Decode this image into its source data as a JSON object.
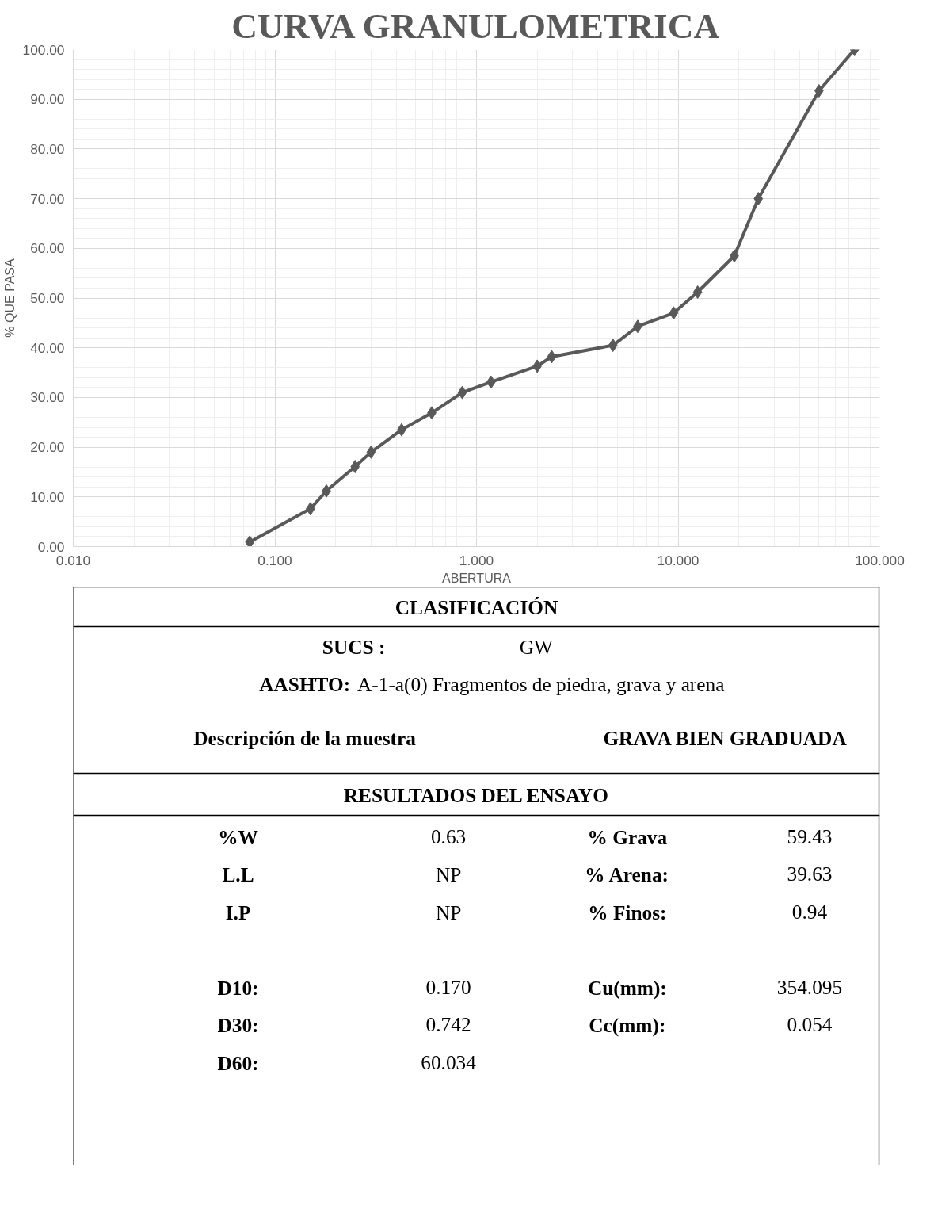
{
  "chart_data": {
    "type": "line",
    "title": "CURVA GRANULOMETRICA",
    "xlabel": "ABERTURA",
    "ylabel": "% QUE PASA",
    "log": "x",
    "x": [
      0.075,
      0.15,
      0.18,
      0.25,
      0.3,
      0.425,
      0.6,
      0.85,
      1.18,
      2.0,
      2.36,
      4.75,
      6.3,
      9.5,
      12.5,
      19.0,
      25.0,
      50.0,
      75.0
    ],
    "series": [
      {
        "color": "#595959",
        "values": [
          0.9,
          7.6,
          11.2,
          16.1,
          19.0,
          23.5,
          26.9,
          31.0,
          33.1,
          36.3,
          38.2,
          40.5,
          44.3,
          47.0,
          51.2,
          58.5,
          70.0,
          91.7,
          100.0
        ]
      }
    ],
    "xlim": [
      0.01,
      100
    ],
    "ylim": [
      0,
      100
    ],
    "xticks": [
      {
        "value": 0.01,
        "label": "0.010"
      },
      {
        "value": 0.1,
        "label": "0.100"
      },
      {
        "value": 1,
        "label": "1.000"
      },
      {
        "value": 10,
        "label": "10.000"
      },
      {
        "value": 100,
        "label": "100.000"
      }
    ],
    "yticks": [
      {
        "value": 0,
        "label": "0.00"
      },
      {
        "value": 10,
        "label": "10.00"
      },
      {
        "value": 20,
        "label": "20.00"
      },
      {
        "value": 30,
        "label": "30.00"
      },
      {
        "value": 40,
        "label": "40.00"
      },
      {
        "value": 50,
        "label": "50.00"
      },
      {
        "value": 60,
        "label": "60.00"
      },
      {
        "value": 70,
        "label": "70.00"
      },
      {
        "value": 80,
        "label": "80.00"
      },
      {
        "value": 90,
        "label": "90.00"
      },
      {
        "value": 100,
        "label": "100.00"
      }
    ],
    "grid": true,
    "marker": "diamond",
    "line_style": "solid",
    "annotations": [
      "CLASIFICACIÓN",
      "SUCS :",
      "GW",
      "AASHTO:",
      "A-1-a(0) Fragmentos de piedra, grava y arena",
      "Descripción de la muestra",
      "GRAVA BIEN GRADUADA",
      "RESULTADOS DEL ENSAYO",
      "%W",
      "0.63",
      "% Grava",
      "59.43",
      "L.L",
      "NP",
      "% Arena:",
      "39.63",
      "I.P",
      "NP",
      "% Finos:",
      "0.94",
      "D10:",
      "0.170",
      "Cu(mm):",
      "354.095",
      "D30:",
      "0.742",
      "Cc(mm):",
      "0.054",
      "D60:",
      "60.034"
    ]
  }
}
